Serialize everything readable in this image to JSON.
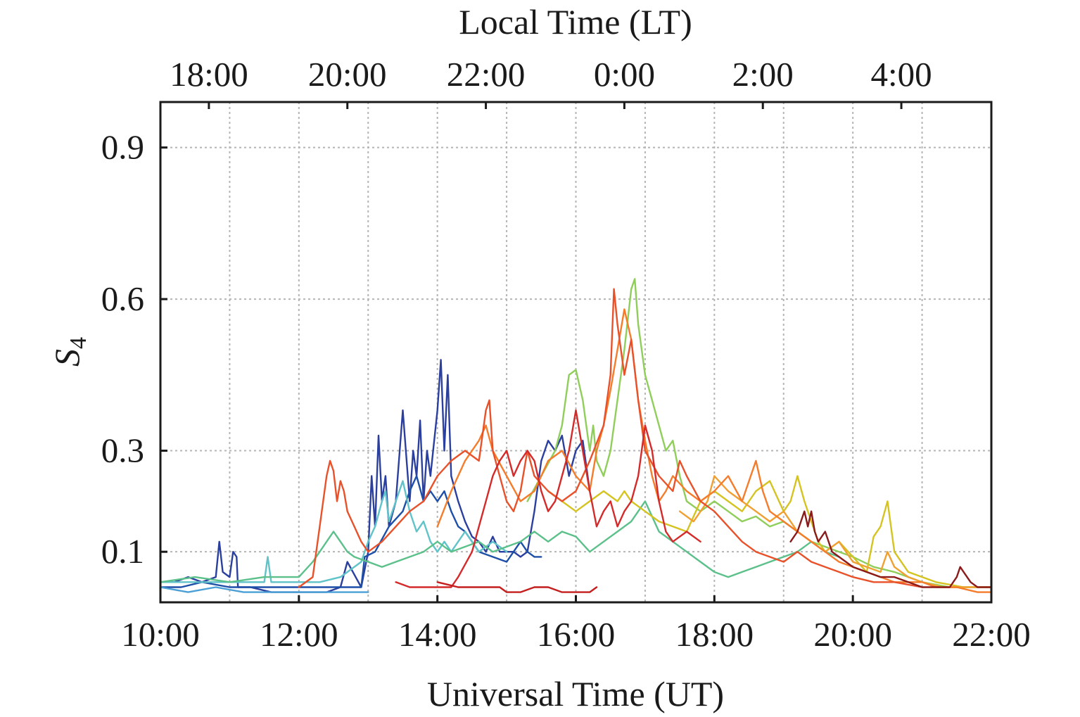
{
  "chart_data": {
    "type": "line",
    "title": "",
    "xlabel": "Universal Time (UT)",
    "x2label": "Local Time (LT)",
    "ylabel_base": "S",
    "ylabel_sub": "4",
    "x_unit": "hours UT",
    "xlim": [
      10,
      22
    ],
    "ylim": [
      0.0,
      0.99
    ],
    "grid": true,
    "legend": "none",
    "x_ticks": [
      {
        "value": 10,
        "label": "10:00"
      },
      {
        "value": 12,
        "label": "12:00"
      },
      {
        "value": 14,
        "label": "14:00"
      },
      {
        "value": 16,
        "label": "16:00"
      },
      {
        "value": 18,
        "label": "18:00"
      },
      {
        "value": 20,
        "label": "20:00"
      },
      {
        "value": 22,
        "label": "22:00"
      }
    ],
    "x_minor_grid": [
      11,
      13,
      15,
      17,
      19,
      21
    ],
    "x2_ticks": [
      {
        "value": 10.7,
        "label": "18:00"
      },
      {
        "value": 12.7,
        "label": "20:00"
      },
      {
        "value": 14.7,
        "label": "22:00"
      },
      {
        "value": 16.7,
        "label": "0:00"
      },
      {
        "value": 18.7,
        "label": "2:00"
      },
      {
        "value": 20.7,
        "label": "4:00"
      }
    ],
    "y_ticks": [
      {
        "value": 0.1,
        "label": "0.1"
      },
      {
        "value": 0.3,
        "label": "0.3"
      },
      {
        "value": 0.6,
        "label": "0.6"
      },
      {
        "value": 0.9,
        "label": "0.9"
      }
    ],
    "series": [
      {
        "color": "#2b3f9e",
        "x": [
          10,
          10.2,
          10.4,
          10.6,
          10.8,
          10.85,
          10.9,
          11.0,
          11.05,
          11.1,
          11.12,
          11.3,
          11.6,
          12.0,
          12.4,
          12.6,
          12.7,
          12.9,
          13.0,
          13.05,
          13.1,
          13.15,
          13.2,
          13.25,
          13.3,
          13.4,
          13.5,
          13.6,
          13.65,
          13.7,
          13.75,
          13.8,
          13.85,
          13.9,
          14.0,
          14.05,
          14.1,
          14.15,
          14.2,
          14.3,
          14.4,
          14.5,
          14.6,
          14.7,
          14.8,
          14.9,
          15.0,
          15.1,
          15.2,
          15.3,
          15.4,
          15.5,
          15.6,
          15.7,
          15.8,
          15.9,
          16.0,
          16.1,
          16.2
        ],
        "y": [
          0.04,
          0.04,
          0.05,
          0.04,
          0.05,
          0.12,
          0.06,
          0.05,
          0.1,
          0.09,
          0.03,
          0.03,
          0.02,
          0.02,
          0.02,
          0.03,
          0.08,
          0.03,
          0.1,
          0.25,
          0.15,
          0.33,
          0.2,
          0.25,
          0.15,
          0.2,
          0.38,
          0.2,
          0.3,
          0.25,
          0.36,
          0.2,
          0.3,
          0.25,
          0.38,
          0.48,
          0.3,
          0.45,
          0.25,
          0.2,
          0.16,
          0.13,
          0.12,
          0.1,
          0.13,
          0.1,
          0.1,
          0.1,
          0.09,
          0.1,
          0.18,
          0.28,
          0.32,
          0.3,
          0.33,
          0.25,
          0.3,
          0.32,
          0.22
        ]
      },
      {
        "color": "#1e4fa8",
        "x": [
          10,
          10.3,
          10.6,
          11.0,
          11.3,
          11.6,
          12.0,
          12.3,
          12.6,
          12.9,
          12.95,
          13.1,
          13.3,
          13.5,
          13.6,
          13.7,
          13.8,
          13.9,
          14.0,
          14.1,
          14.2,
          14.3,
          14.4,
          14.5,
          14.6,
          14.8,
          15.0,
          15.1,
          15.2,
          15.3,
          15.4,
          15.5
        ],
        "y": [
          0.03,
          0.03,
          0.04,
          0.03,
          0.03,
          0.03,
          0.03,
          0.03,
          0.03,
          0.03,
          0.09,
          0.1,
          0.15,
          0.18,
          0.22,
          0.25,
          0.2,
          0.22,
          0.2,
          0.22,
          0.18,
          0.15,
          0.14,
          0.12,
          0.1,
          0.09,
          0.08,
          0.1,
          0.12,
          0.1,
          0.09,
          0.09
        ]
      },
      {
        "color": "#4a9fd6",
        "x": [
          10,
          10.4,
          10.8,
          11.2,
          11.6,
          12.0,
          12.4,
          12.8,
          13.0
        ],
        "y": [
          0.03,
          0.02,
          0.03,
          0.02,
          0.02,
          0.02,
          0.02,
          0.02,
          0.02
        ]
      },
      {
        "color": "#5fc3c8",
        "x": [
          10,
          10.5,
          11.0,
          11.5,
          11.55,
          11.6,
          12.0,
          12.3,
          12.6,
          12.9,
          13.0,
          13.1,
          13.2,
          13.25,
          13.3,
          13.4,
          13.5,
          13.6,
          13.7,
          13.8,
          13.9,
          14.0,
          14.1,
          14.2,
          14.3,
          14.4,
          14.5,
          14.6,
          14.8,
          15.0
        ],
        "y": [
          0.04,
          0.04,
          0.04,
          0.04,
          0.09,
          0.04,
          0.04,
          0.04,
          0.05,
          0.08,
          0.12,
          0.15,
          0.2,
          0.22,
          0.16,
          0.2,
          0.24,
          0.18,
          0.14,
          0.16,
          0.12,
          0.1,
          0.12,
          0.1,
          0.12,
          0.14,
          0.12,
          0.1,
          0.12,
          0.1
        ]
      },
      {
        "color": "#5bc08a",
        "x": [
          10,
          10.5,
          11.0,
          11.5,
          12.0,
          12.2,
          12.3,
          12.4,
          12.5,
          12.6,
          12.7,
          12.8,
          13.0,
          13.2,
          13.4,
          13.6,
          13.8,
          14.0,
          14.2,
          14.4,
          14.6,
          14.8,
          15.0,
          15.2,
          15.4,
          15.6,
          15.8,
          16.0,
          16.2,
          16.4,
          16.6,
          16.8,
          17.0,
          17.2,
          17.4,
          17.6,
          17.8,
          18.0,
          18.2,
          18.4,
          18.6,
          18.8,
          19.0,
          19.2,
          19.4,
          19.6,
          19.8
        ],
        "y": [
          0.04,
          0.05,
          0.04,
          0.05,
          0.05,
          0.08,
          0.1,
          0.12,
          0.14,
          0.12,
          0.1,
          0.09,
          0.08,
          0.07,
          0.08,
          0.09,
          0.1,
          0.12,
          0.1,
          0.11,
          0.12,
          0.1,
          0.11,
          0.12,
          0.14,
          0.12,
          0.14,
          0.13,
          0.1,
          0.12,
          0.14,
          0.16,
          0.2,
          0.14,
          0.12,
          0.1,
          0.08,
          0.06,
          0.05,
          0.06,
          0.07,
          0.08,
          0.09,
          0.1,
          0.12,
          0.1,
          0.09
        ]
      },
      {
        "color": "#8fce5a",
        "x": [
          15.3,
          15.5,
          15.7,
          15.8,
          15.9,
          16.0,
          16.1,
          16.2,
          16.25,
          16.3,
          16.4,
          16.5,
          16.6,
          16.7,
          16.8,
          16.85,
          16.9,
          17.0,
          17.1,
          17.2,
          17.3,
          17.4,
          17.5,
          17.6,
          17.8,
          18.0,
          18.2,
          18.4,
          18.6,
          18.8,
          19.0,
          19.2,
          19.4,
          19.6,
          19.8,
          20.0,
          20.3,
          20.6,
          21.0,
          21.4,
          21.8,
          22.0
        ],
        "y": [
          0.2,
          0.25,
          0.3,
          0.35,
          0.45,
          0.46,
          0.4,
          0.3,
          0.35,
          0.28,
          0.25,
          0.3,
          0.4,
          0.5,
          0.62,
          0.64,
          0.55,
          0.45,
          0.4,
          0.35,
          0.3,
          0.32,
          0.25,
          0.2,
          0.18,
          0.2,
          0.18,
          0.16,
          0.17,
          0.15,
          0.16,
          0.14,
          0.12,
          0.11,
          0.1,
          0.09,
          0.07,
          0.06,
          0.04,
          0.03,
          0.03,
          0.03
        ]
      },
      {
        "color": "#d4c320",
        "x": [
          15.6,
          15.8,
          16.0,
          16.2,
          16.4,
          16.6,
          16.7,
          16.8,
          17.0,
          17.2,
          17.4,
          17.6,
          17.8,
          18.0,
          18.2,
          18.4,
          18.6,
          18.8,
          19.0,
          19.1,
          19.2,
          19.3,
          19.4,
          19.5,
          19.6,
          19.8,
          20.0,
          20.2,
          20.3,
          20.4,
          20.5,
          20.6,
          20.8,
          21.2,
          21.6,
          22.0
        ],
        "y": [
          0.22,
          0.2,
          0.18,
          0.2,
          0.22,
          0.2,
          0.22,
          0.2,
          0.18,
          0.16,
          0.15,
          0.14,
          0.2,
          0.22,
          0.2,
          0.18,
          0.22,
          0.24,
          0.18,
          0.2,
          0.25,
          0.2,
          0.16,
          0.12,
          0.1,
          0.12,
          0.09,
          0.06,
          0.13,
          0.15,
          0.2,
          0.1,
          0.06,
          0.04,
          0.03,
          0.03
        ]
      },
      {
        "color": "#f0a032",
        "x": [
          17.5,
          17.7,
          17.9,
          18.0,
          18.2,
          18.4,
          18.6,
          18.8,
          19.0,
          19.2,
          19.4,
          19.6,
          19.8,
          20.0,
          20.2,
          20.4,
          20.5,
          20.6,
          20.8,
          21.0,
          21.3,
          21.6,
          22.0
        ],
        "y": [
          0.18,
          0.16,
          0.2,
          0.25,
          0.22,
          0.2,
          0.18,
          0.16,
          0.18,
          0.14,
          0.12,
          0.1,
          0.12,
          0.08,
          0.07,
          0.06,
          0.1,
          0.07,
          0.05,
          0.04,
          0.03,
          0.03,
          0.03
        ]
      },
      {
        "color": "#f47c2a",
        "x": [
          14.0,
          14.2,
          14.4,
          14.6,
          14.7,
          14.8,
          15.0,
          15.2,
          15.4,
          15.6,
          15.8,
          16.0,
          16.2,
          16.3,
          16.4,
          16.5,
          16.6,
          16.7,
          16.8,
          16.9,
          17.0,
          17.1,
          17.2,
          17.3,
          17.4,
          17.6,
          17.8,
          18.0,
          18.2,
          18.4,
          18.6,
          18.7,
          18.8,
          19.0,
          19.2,
          19.4,
          19.6,
          19.8,
          20.0,
          20.2,
          20.4,
          20.6,
          20.8,
          21.0,
          21.2,
          21.5,
          21.8,
          22.0
        ],
        "y": [
          0.15,
          0.22,
          0.28,
          0.32,
          0.35,
          0.3,
          0.25,
          0.2,
          0.22,
          0.28,
          0.3,
          0.25,
          0.22,
          0.3,
          0.35,
          0.42,
          0.5,
          0.58,
          0.52,
          0.4,
          0.32,
          0.25,
          0.2,
          0.22,
          0.25,
          0.22,
          0.2,
          0.22,
          0.25,
          0.2,
          0.28,
          0.22,
          0.18,
          0.16,
          0.14,
          0.12,
          0.1,
          0.08,
          0.07,
          0.06,
          0.05,
          0.04,
          0.04,
          0.04,
          0.03,
          0.03,
          0.02,
          0.02
        ]
      },
      {
        "color": "#e8512a",
        "x": [
          12.0,
          12.2,
          12.3,
          12.35,
          12.4,
          12.45,
          12.5,
          12.55,
          12.6,
          12.65,
          12.7,
          12.8,
          12.9,
          13.0,
          13.2,
          13.4,
          13.6,
          13.8,
          14.0,
          14.2,
          14.4,
          14.6,
          14.7,
          14.75,
          14.8,
          14.9,
          15.0,
          15.1,
          15.2,
          15.3,
          15.4,
          15.6,
          15.8,
          16.0,
          16.2,
          16.4,
          16.5,
          16.55,
          16.6,
          16.7,
          16.8,
          16.9,
          17.0,
          17.2,
          17.4,
          17.5,
          17.6,
          17.8,
          18.0,
          18.2,
          18.4,
          18.6,
          18.8,
          19.0,
          19.2,
          19.4,
          19.6,
          19.8,
          20.0,
          20.3,
          20.6,
          21.0
        ],
        "y": [
          0.03,
          0.05,
          0.15,
          0.2,
          0.25,
          0.28,
          0.26,
          0.2,
          0.24,
          0.22,
          0.18,
          0.15,
          0.12,
          0.1,
          0.12,
          0.15,
          0.18,
          0.2,
          0.25,
          0.28,
          0.3,
          0.28,
          0.38,
          0.4,
          0.3,
          0.25,
          0.2,
          0.18,
          0.22,
          0.3,
          0.25,
          0.22,
          0.2,
          0.22,
          0.28,
          0.35,
          0.45,
          0.62,
          0.55,
          0.45,
          0.52,
          0.4,
          0.3,
          0.25,
          0.22,
          0.28,
          0.25,
          0.2,
          0.18,
          0.15,
          0.12,
          0.1,
          0.09,
          0.08,
          0.1,
          0.08,
          0.07,
          0.06,
          0.05,
          0.04,
          0.04,
          0.03
        ]
      },
      {
        "color": "#d42a2a",
        "x": [
          13.4,
          13.6,
          13.8,
          14.0,
          14.2,
          14.3,
          14.5,
          14.6,
          14.7,
          14.8,
          14.9,
          15.0,
          15.1,
          15.2,
          15.3,
          15.4,
          15.5,
          15.6,
          15.7,
          15.8,
          15.9,
          16.0,
          16.1,
          16.2,
          16.3,
          16.4,
          16.5,
          16.6,
          16.7,
          16.8,
          16.9,
          17.0,
          17.1,
          17.2,
          17.3,
          17.4,
          17.6,
          17.8
        ],
        "y": [
          0.04,
          0.03,
          0.03,
          0.03,
          0.03,
          0.05,
          0.1,
          0.15,
          0.2,
          0.25,
          0.28,
          0.3,
          0.25,
          0.28,
          0.3,
          0.28,
          0.22,
          0.18,
          0.2,
          0.25,
          0.3,
          0.38,
          0.3,
          0.22,
          0.15,
          0.18,
          0.2,
          0.15,
          0.18,
          0.2,
          0.25,
          0.35,
          0.3,
          0.2,
          0.14,
          0.12,
          0.14,
          0.12
        ]
      },
      {
        "color": "#c41e1e",
        "x": [
          14.0,
          14.3,
          14.6,
          14.9,
          15.0,
          15.2,
          15.4,
          15.6,
          15.8,
          16.0,
          16.2,
          16.3
        ],
        "y": [
          0.04,
          0.03,
          0.03,
          0.03,
          0.02,
          0.02,
          0.03,
          0.03,
          0.02,
          0.02,
          0.02,
          0.03
        ]
      },
      {
        "color": "#8b1a1a",
        "x": [
          19.1,
          19.2,
          19.3,
          19.35,
          19.4,
          19.45,
          19.5,
          19.6,
          19.7,
          19.8,
          19.9,
          20.0,
          20.2,
          20.4,
          20.6,
          20.8,
          21.0,
          21.2,
          21.4,
          21.5,
          21.55,
          21.6,
          21.7,
          21.8,
          22.0
        ],
        "y": [
          0.12,
          0.14,
          0.18,
          0.15,
          0.18,
          0.14,
          0.12,
          0.14,
          0.1,
          0.09,
          0.08,
          0.07,
          0.06,
          0.05,
          0.05,
          0.04,
          0.03,
          0.03,
          0.03,
          0.05,
          0.07,
          0.06,
          0.04,
          0.03,
          0.03
        ]
      }
    ]
  }
}
